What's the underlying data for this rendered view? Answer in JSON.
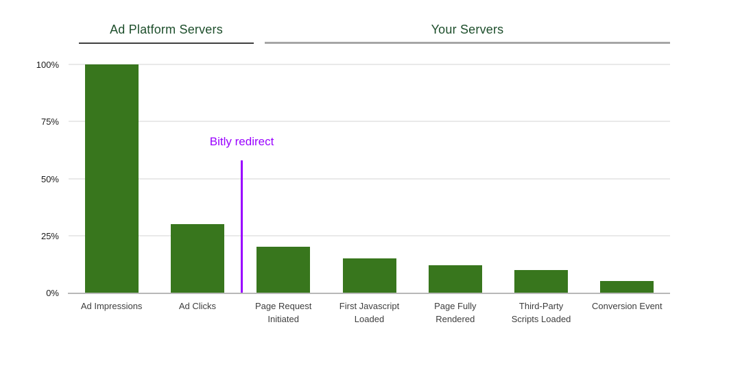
{
  "page": {
    "background": "#ffffff"
  },
  "colors": {
    "bar": "#38761d",
    "header_text": "#1d4e2b",
    "annotation": "#9900ff",
    "gridline": "#e9e9e9",
    "baseline": "#b8b8b8",
    "axis_label": "#3d3d3d",
    "ytick_label": "#1a1a1a",
    "underline_left": "#3f3f3f",
    "underline_right": "#a6a6a6"
  },
  "chart_data": {
    "type": "bar",
    "title": "",
    "xlabel": "",
    "ylabel": "",
    "unit": "%",
    "categories": [
      "Ad Impressions",
      "Ad Clicks",
      "Page Request Initiated",
      "First Javascript Loaded",
      "Page Fully Rendered",
      "Third-Party Scripts Loaded",
      "Conversion Event"
    ],
    "category_label_lines": [
      [
        "Ad Impressions"
      ],
      [
        "Ad Clicks"
      ],
      [
        "Page Request",
        "Initiated"
      ],
      [
        "First Javascript",
        "Loaded"
      ],
      [
        "Page Fully",
        "Rendered"
      ],
      [
        "Third-Party",
        "Scripts Loaded"
      ],
      [
        "Conversion Event"
      ]
    ],
    "values": [
      100,
      30,
      20,
      15,
      12,
      10,
      5
    ],
    "ylim": [
      0,
      100
    ],
    "y_ticks": [
      0,
      25,
      50,
      75,
      100
    ],
    "y_tick_labels": [
      "0%",
      "25%",
      "50%",
      "75%",
      "100%"
    ],
    "grid": true,
    "legend": "none",
    "sections": [
      {
        "label": "Ad Platform Servers",
        "categories": [
          "Ad Impressions",
          "Ad Clicks"
        ]
      },
      {
        "label": "Your Servers",
        "categories": [
          "Page Request Initiated",
          "First Javascript Loaded",
          "Page Fully Rendered",
          "Third-Party Scripts Loaded",
          "Conversion Event"
        ]
      }
    ],
    "annotation": {
      "label": "Bitly redirect",
      "between_categories": [
        "Ad Clicks",
        "Page Request Initiated"
      ],
      "after_index": 2,
      "line_top_value": 58
    }
  }
}
